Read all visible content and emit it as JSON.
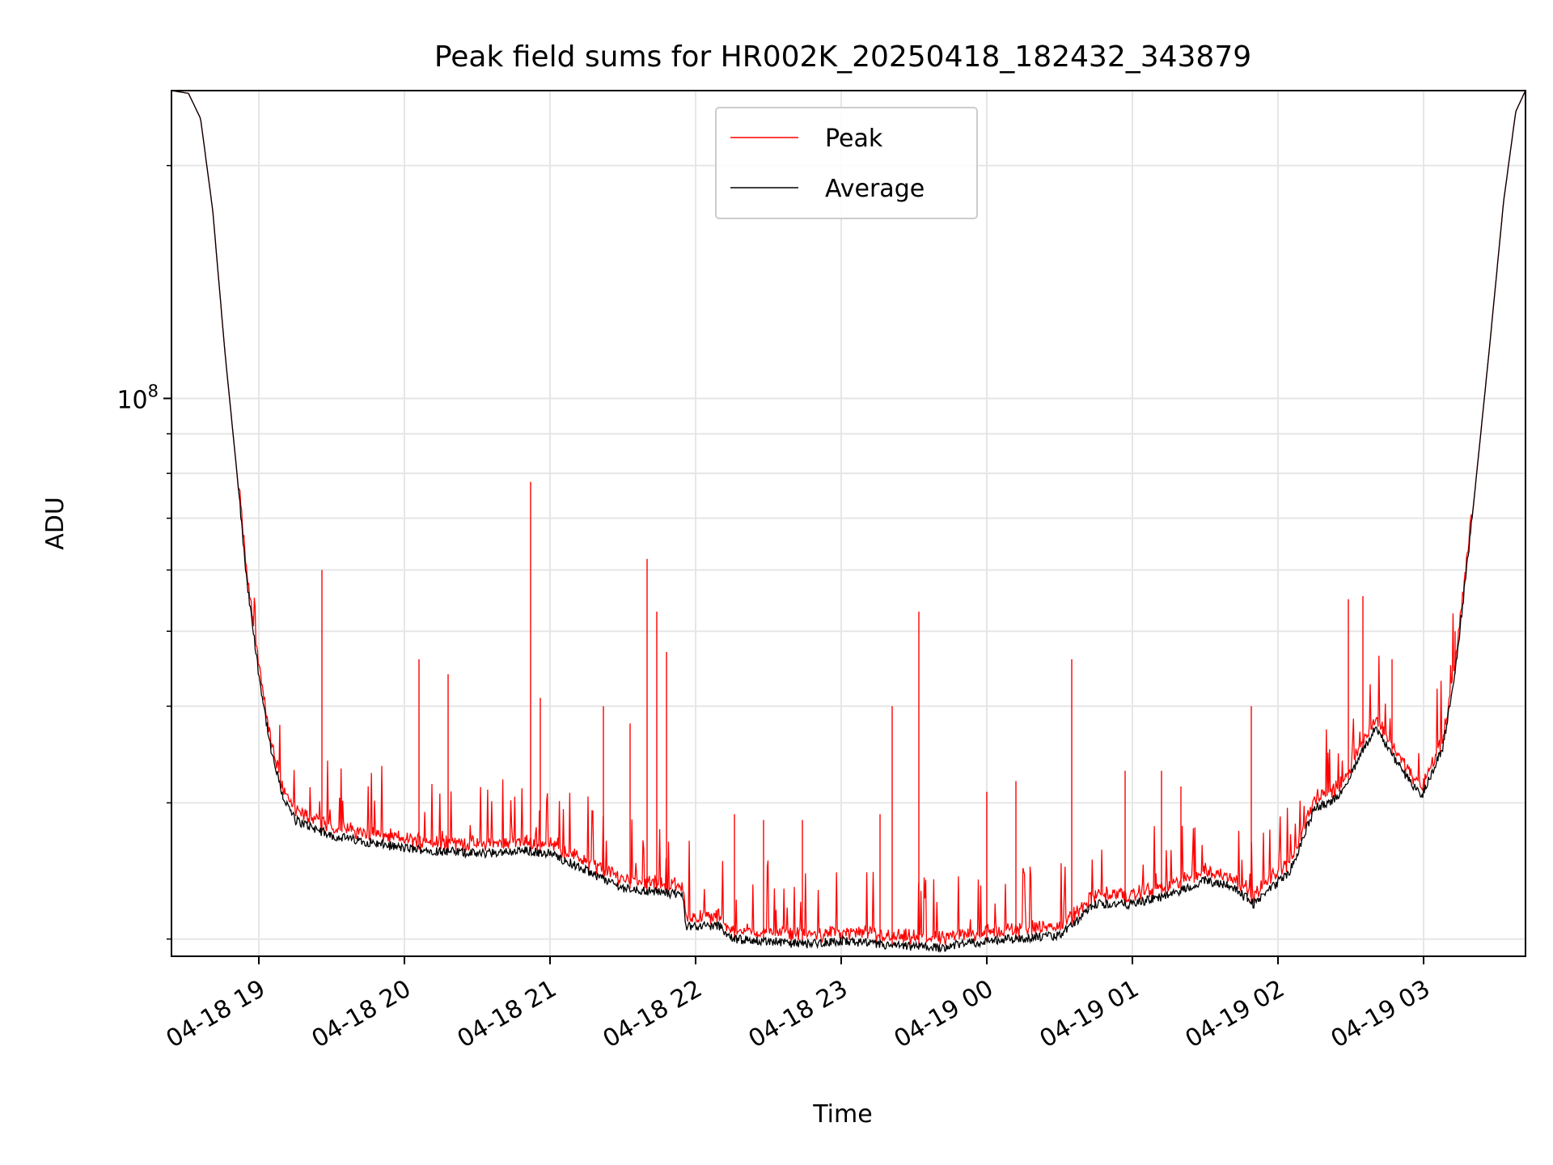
{
  "chart_data": {
    "type": "line",
    "title": "Peak field sums for HR002K_20250418_182432_343879",
    "xlabel": "Time",
    "ylabel": "ADU",
    "y_scale": "log",
    "xlim": [
      "2025-04-18 18:24",
      "2025-04-19 03:42"
    ],
    "ylim": [
      19000000.0,
      250000000.0
    ],
    "grid": true,
    "legend_position": "top-center",
    "x_ticks": [
      "04-18 19",
      "04-18 20",
      "04-18 21",
      "04-18 22",
      "04-18 23",
      "04-19 00",
      "04-19 01",
      "04-19 02",
      "04-19 03"
    ],
    "y_tick_major": {
      "base": "10",
      "exponent": "8"
    },
    "series": [
      {
        "name": "Peak",
        "color": "#ff0000"
      },
      {
        "name": "Average",
        "color": "#000000"
      }
    ],
    "average_points": [
      [
        "2025-04-18 18:24",
        250000000.0
      ],
      [
        "2025-04-18 18:31",
        248000000.0
      ],
      [
        "2025-04-18 18:36",
        230000000.0
      ],
      [
        "2025-04-18 18:41",
        175000000.0
      ],
      [
        "2025-04-18 18:46",
        115000000.0
      ],
      [
        "2025-04-18 18:51",
        80000000.0
      ],
      [
        "2025-04-18 18:55",
        58000000.0
      ],
      [
        "2025-04-18 19:00",
        44000000.0
      ],
      [
        "2025-04-18 19:05",
        35000000.0
      ],
      [
        "2025-04-18 19:10",
        30500000.0
      ],
      [
        "2025-04-18 19:15",
        28500000.0
      ],
      [
        "2025-04-18 19:30",
        27200000.0
      ],
      [
        "2025-04-18 20:00",
        26200000.0
      ],
      [
        "2025-04-18 20:30",
        25800000.0
      ],
      [
        "2025-04-18 20:50",
        26000000.0
      ],
      [
        "2025-04-18 21:00",
        25800000.0
      ],
      [
        "2025-04-18 21:15",
        24500000.0
      ],
      [
        "2025-04-18 21:30",
        23300000.0
      ],
      [
        "2025-04-18 21:55",
        22800000.0
      ],
      [
        "2025-04-18 21:56",
        20800000.0
      ],
      [
        "2025-04-18 22:10",
        20800000.0
      ],
      [
        "2025-04-18 22:15",
        20000000.0
      ],
      [
        "2025-04-18 22:45",
        19700000.0
      ],
      [
        "2025-04-18 23:00",
        19900000.0
      ],
      [
        "2025-04-18 23:20",
        19600000.0
      ],
      [
        "2025-04-18 23:40",
        19500000.0
      ],
      [
        "2025-04-19 00:00",
        19900000.0
      ],
      [
        "2025-04-19 00:30",
        20200000.0
      ],
      [
        "2025-04-19 00:45",
        22200000.0
      ],
      [
        "2025-04-19 01:00",
        22200000.0
      ],
      [
        "2025-04-19 01:15",
        22800000.0
      ],
      [
        "2025-04-19 01:30",
        23800000.0
      ],
      [
        "2025-04-19 01:40",
        23500000.0
      ],
      [
        "2025-04-19 01:50",
        22200000.0
      ],
      [
        "2025-04-19 02:05",
        24500000.0
      ],
      [
        "2025-04-19 02:15",
        29500000.0
      ],
      [
        "2025-04-19 02:25",
        30500000.0
      ],
      [
        "2025-04-19 02:40",
        37500000.0
      ],
      [
        "2025-04-19 02:50",
        33500000.0
      ],
      [
        "2025-04-19 02:59",
        30500000.0
      ],
      [
        "2025-04-19 03:08",
        35500000.0
      ],
      [
        "2025-04-19 03:13",
        44000000.0
      ],
      [
        "2025-04-19 03:20",
        70000000.0
      ],
      [
        "2025-04-19 03:27",
        115000000.0
      ],
      [
        "2025-04-19 03:33",
        180000000.0
      ],
      [
        "2025-04-19 03:38",
        235000000.0
      ],
      [
        "2025-04-19 03:42",
        250000000.0
      ]
    ],
    "peak_spikes": [
      [
        "2025-04-18 19:26",
        60000000.0
      ],
      [
        "2025-04-18 20:06",
        46000000.0
      ],
      [
        "2025-04-18 20:18",
        44000000.0
      ],
      [
        "2025-04-18 20:52",
        78000000.0
      ],
      [
        "2025-04-18 20:56",
        41000000.0
      ],
      [
        "2025-04-18 21:22",
        40000000.0
      ],
      [
        "2025-04-18 21:33",
        38000000.0
      ],
      [
        "2025-04-18 21:40",
        62000000.0
      ],
      [
        "2025-04-18 21:44",
        53000000.0
      ],
      [
        "2025-04-18 21:48",
        47000000.0
      ],
      [
        "2025-04-18 22:16",
        29000000.0
      ],
      [
        "2025-04-18 22:28",
        28500000.0
      ],
      [
        "2025-04-18 22:44",
        28500000.0
      ],
      [
        "2025-04-18 23:16",
        29000000.0
      ],
      [
        "2025-04-18 23:21",
        40000000.0
      ],
      [
        "2025-04-18 23:32",
        53000000.0
      ],
      [
        "2025-04-19 00:00",
        31000000.0
      ],
      [
        "2025-04-19 00:12",
        32000000.0
      ],
      [
        "2025-04-19 00:35",
        46000000.0
      ],
      [
        "2025-04-19 00:57",
        33000000.0
      ],
      [
        "2025-04-19 01:12",
        33000000.0
      ],
      [
        "2025-04-19 01:20",
        31500000.0
      ],
      [
        "2025-04-19 01:49",
        40000000.0
      ],
      [
        "2025-04-19 02:29",
        55000000.0
      ],
      [
        "2025-04-19 02:35",
        55500000.0
      ],
      [
        "2025-04-19 02:47",
        46000000.0
      ],
      [
        "2025-04-19 03:13",
        50000000.0
      ]
    ]
  }
}
